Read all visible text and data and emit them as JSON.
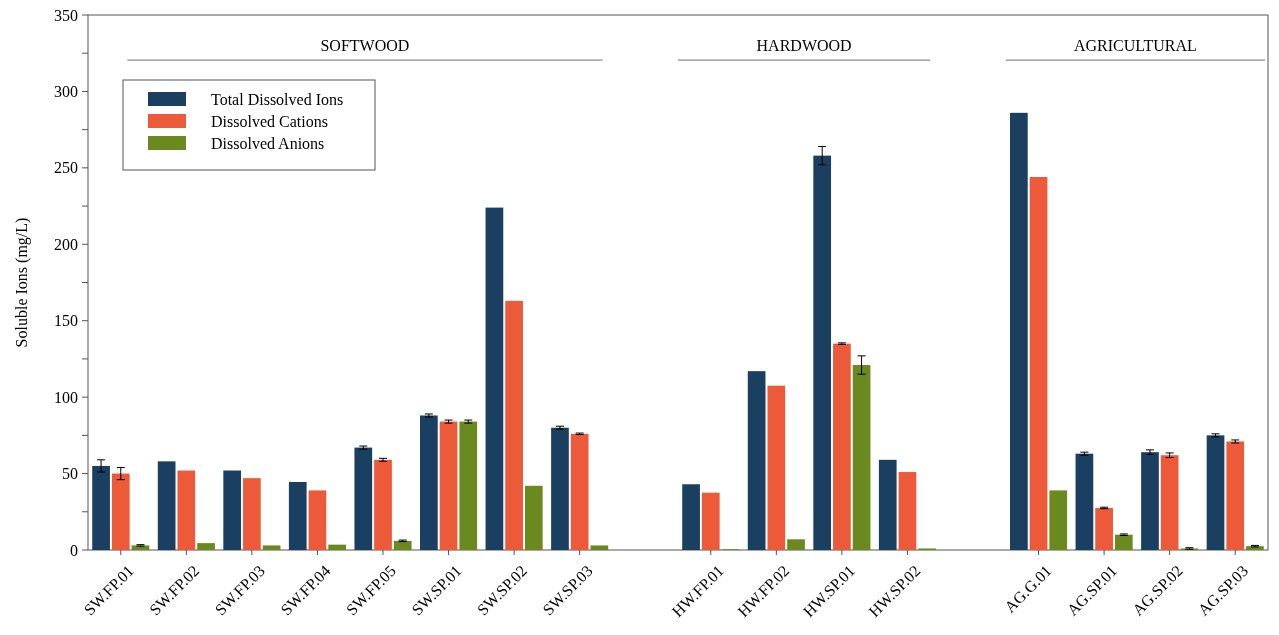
{
  "chart_data": {
    "type": "bar",
    "ylabel": "Soluble Ions (mg/L)",
    "categories": [
      "SW.FP.01",
      "SW.FP.02",
      "SW.FP.03",
      "SW.FP.04",
      "SW.FP.05",
      "SW.SP.01",
      "SW.SP.02",
      "SW.SP.03",
      null,
      "HW.FP.01",
      "HW.FP.02",
      "HW.SP.01",
      "HW.SP.02",
      null,
      "AG.G.01",
      "AG.SP.01",
      "AG.SP.02",
      "AG.SP.03"
    ],
    "series": [
      {
        "name": "Total Dissolved Ions",
        "color": "#1b3f61",
        "values": [
          55,
          58,
          52,
          44.5,
          67,
          88,
          224,
          80,
          null,
          43,
          117,
          258,
          59,
          null,
          286,
          63,
          64,
          75
        ],
        "errors": [
          4,
          null,
          null,
          null,
          1,
          1,
          null,
          1,
          null,
          null,
          null,
          6,
          null,
          null,
          null,
          1,
          1.5,
          1
        ]
      },
      {
        "name": "Dissolved Cations",
        "color": "#ec5a3a",
        "values": [
          50,
          52,
          47,
          39,
          59,
          84,
          163,
          76,
          null,
          37.5,
          107.5,
          135,
          51,
          null,
          244,
          27.5,
          62,
          71
        ],
        "errors": [
          4,
          null,
          null,
          null,
          1,
          1,
          null,
          0.5,
          null,
          null,
          null,
          0.5,
          null,
          null,
          null,
          0.5,
          1.5,
          1
        ]
      },
      {
        "name": "Dissolved Anions",
        "color": "#6a8a1f",
        "values": [
          3,
          4.5,
          3,
          3.5,
          6,
          84,
          42,
          3,
          null,
          0.5,
          7,
          121,
          1,
          null,
          39,
          10,
          1,
          2.5
        ],
        "errors": [
          0.5,
          null,
          null,
          null,
          0.5,
          1,
          null,
          null,
          null,
          null,
          null,
          6,
          null,
          null,
          null,
          0.5,
          0.5,
          0.5
        ]
      }
    ],
    "ylim": [
      0,
      350
    ],
    "yticks": [
      0,
      {
        "value": 25,
        "label": null
      },
      50,
      {
        "value": 75,
        "label": null
      },
      100,
      {
        "value": 125,
        "label": null
      },
      150,
      {
        "value": 175,
        "label": null
      },
      200,
      {
        "value": 225,
        "label": null
      },
      250,
      {
        "value": 275,
        "label": null
      },
      300,
      {
        "value": 325,
        "label": null
      },
      350
    ],
    "annotations": [
      "SOFTWOOD",
      "HARDWOOD",
      "AGRICULTURAL"
    ],
    "legend": "top left",
    "grid": false
  }
}
